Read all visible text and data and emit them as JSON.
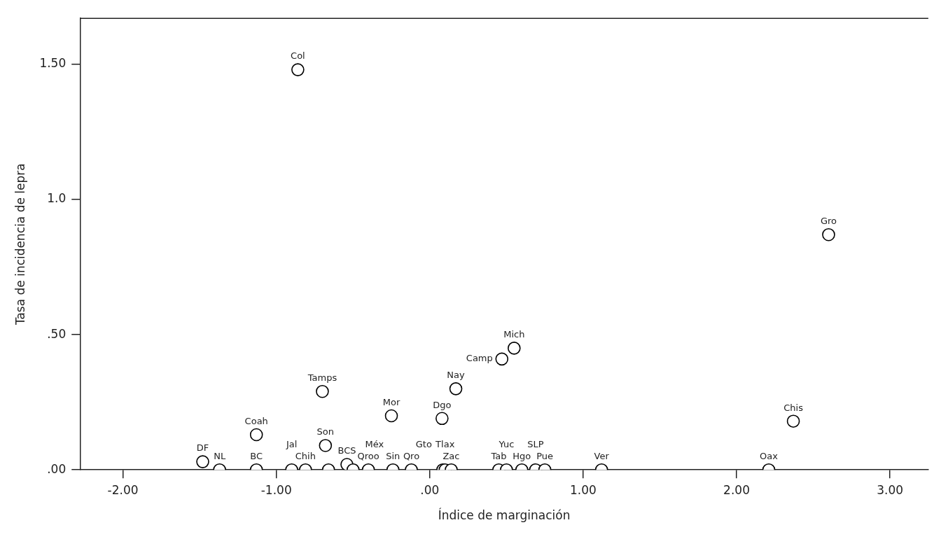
{
  "chart_data": {
    "type": "scatter",
    "xlabel": "Índice de marginación",
    "ylabel": "Tasa de incidencia de lepra",
    "xlim": [
      -2.28,
      3.25
    ],
    "ylim": [
      0,
      1.67
    ],
    "xticks": [
      {
        "value": -2,
        "label": "-2.00"
      },
      {
        "value": -1,
        "label": "-1.00"
      },
      {
        "value": 0,
        "label": ".00"
      },
      {
        "value": 1,
        "label": "1.00"
      },
      {
        "value": 2,
        "label": "2.00"
      },
      {
        "value": 3,
        "label": "3.00"
      }
    ],
    "yticks": [
      {
        "value": 0,
        "label": ".00"
      },
      {
        "value": 0.5,
        "label": ".50"
      },
      {
        "value": 1,
        "label": "1.0"
      },
      {
        "value": 1.5,
        "label": "1.50"
      }
    ],
    "grid": false,
    "legend": false,
    "marker": "circle",
    "series": [
      {
        "color": "#000000",
        "x": [
          -0.86,
          2.6,
          2.37,
          2.21,
          1.12,
          0.47,
          0.55,
          0.17,
          -0.7,
          -0.25,
          0.08,
          -1.13,
          -1.48,
          -1.37,
          -1.13,
          -0.9,
          -0.81,
          -0.68,
          -0.66,
          -0.54,
          -0.5,
          -0.4,
          -0.24,
          -0.12,
          0.085,
          0.1,
          0.14,
          0.45,
          0.5,
          0.6,
          0.69,
          0.75
        ],
        "values": [
          1.48,
          0.87,
          0.18,
          0,
          0,
          0.41,
          0.45,
          0.3,
          0.29,
          0.2,
          0.19,
          0.13,
          0.03,
          0,
          0,
          0,
          0,
          0.09,
          0,
          0.02,
          0,
          0,
          0,
          0,
          0,
          0,
          0,
          0,
          0,
          0,
          0,
          0
        ],
        "value_labels": [
          "Col",
          "Gro",
          "Chis",
          "Oax",
          "Ver",
          "Camp",
          "Mich",
          "Nay",
          "Tamps",
          "Mor",
          "Dgo",
          "Coah",
          "DF",
          "NL",
          "BC",
          "Jal",
          "Chih",
          "Son",
          null,
          "BCS",
          "Méx",
          "Qroo",
          "Sin",
          "Qro",
          "Gto",
          "Tlax",
          "Zac",
          "Tab",
          "Yuc",
          "Hgo",
          "SLP",
          "Pue"
        ]
      }
    ]
  }
}
